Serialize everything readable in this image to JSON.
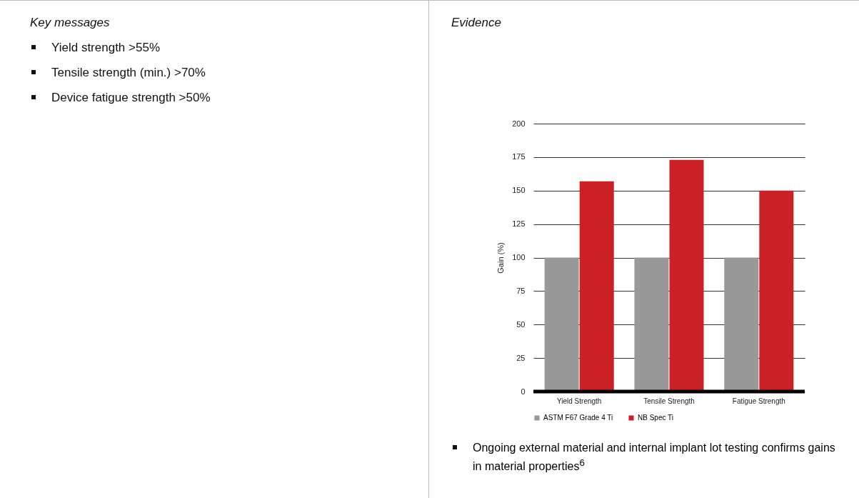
{
  "chart_data": {
    "type": "bar",
    "ylabel": "Gain (%)",
    "categories": [
      "Yield Strength",
      "Tensile Strength",
      "Fatigue Strength"
    ],
    "series": [
      {
        "name": "ASTM F67 Grade 4 Ti",
        "color": "#999999",
        "values": [
          100,
          100,
          100
        ]
      },
      {
        "name": "NB Spec Ti",
        "color": "#cc2027",
        "values": [
          157,
          173,
          150
        ]
      }
    ],
    "ylim": [
      0,
      200
    ],
    "yticks": [
      0,
      25,
      50,
      75,
      100,
      125,
      150,
      175,
      200
    ],
    "grid": "y",
    "legend": "bottom",
    "annotations": [
      "Key messages",
      "Yield strength >55%",
      "Tensile strength (min.) >70%",
      "Device fatigue strength >50%",
      "Evidence",
      "Ongoing external material and internal implant lot testing confirms gains in material properties$^{6}$"
    ]
  }
}
